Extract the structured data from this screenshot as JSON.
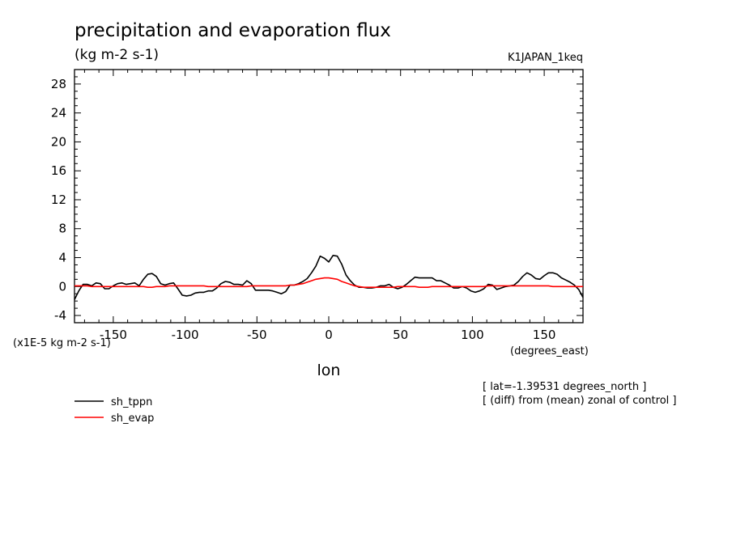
{
  "chart_data": {
    "type": "line",
    "title": "precipitation and evaporation flux",
    "units": "(kg m-2 s-1)",
    "run_label": "K1JAPAN_1keq",
    "scale_label": "(x1E-5 kg m-2 s-1)",
    "xlabel": "lon",
    "xunits": "(degrees_east)",
    "notes": [
      "[ lat=-1.39531 degrees_north ]",
      "[ (diff) from (mean) zonal of control ]"
    ],
    "xlim": [
      -177,
      177
    ],
    "ylim": [
      -5,
      30
    ],
    "xticks": [
      -150,
      -100,
      -50,
      0,
      50,
      100,
      150
    ],
    "xtick_labels": [
      "-150",
      "-100",
      "-50",
      "0",
      "50",
      "100",
      "150"
    ],
    "yticks": [
      -4,
      0,
      4,
      8,
      12,
      16,
      20,
      24,
      28
    ],
    "ytick_labels": [
      "-4",
      "0",
      "4",
      "8",
      "12",
      "16",
      "20",
      "24",
      "28"
    ],
    "x": [
      -177,
      -174,
      -171,
      -168,
      -165,
      -162,
      -159,
      -156,
      -153,
      -150,
      -147,
      -144,
      -141,
      -138,
      -135,
      -132,
      -129,
      -126,
      -123,
      -120,
      -117,
      -114,
      -111,
      -108,
      -105,
      -102,
      -99,
      -96,
      -93,
      -90,
      -87,
      -84,
      -81,
      -78,
      -75,
      -72,
      -69,
      -66,
      -63,
      -60,
      -57,
      -54,
      -51,
      -48,
      -45,
      -42,
      -39,
      -36,
      -33,
      -30,
      -27,
      -24,
      -21,
      -18,
      -15,
      -12,
      -9,
      -6,
      -3,
      0,
      3,
      6,
      9,
      12,
      15,
      18,
      21,
      24,
      27,
      30,
      33,
      36,
      39,
      42,
      45,
      48,
      51,
      54,
      57,
      60,
      63,
      66,
      69,
      72,
      75,
      78,
      81,
      84,
      87,
      90,
      93,
      96,
      99,
      102,
      105,
      108,
      111,
      114,
      117,
      120,
      123,
      126,
      129,
      132,
      135,
      138,
      141,
      144,
      147,
      150,
      153,
      156,
      159,
      162,
      165,
      168,
      171,
      174,
      177
    ],
    "series": [
      {
        "name": "sh_tppn",
        "color": "#000000",
        "values": [
          -1.8,
          -0.6,
          0.3,
          0.3,
          0.1,
          0.5,
          0.4,
          -0.3,
          -0.3,
          0.1,
          0.4,
          0.5,
          0.3,
          0.4,
          0.5,
          0.1,
          1.0,
          1.7,
          1.8,
          1.4,
          0.4,
          0.2,
          0.4,
          0.5,
          -0.3,
          -1.2,
          -1.3,
          -1.2,
          -0.9,
          -0.8,
          -0.8,
          -0.6,
          -0.6,
          -0.2,
          0.4,
          0.7,
          0.6,
          0.3,
          0.3,
          0.2,
          0.8,
          0.4,
          -0.5,
          -0.5,
          -0.5,
          -0.5,
          -0.6,
          -0.8,
          -1.0,
          -0.7,
          0.2,
          0.2,
          0.4,
          0.7,
          1.1,
          1.9,
          2.8,
          4.2,
          3.9,
          3.4,
          4.3,
          4.2,
          3.1,
          1.6,
          0.8,
          0.2,
          -0.1,
          -0.1,
          -0.2,
          -0.2,
          -0.1,
          0.1,
          0.1,
          0.3,
          -0.1,
          -0.3,
          -0.1,
          0.3,
          0.8,
          1.3,
          1.2,
          1.2,
          1.2,
          1.2,
          0.8,
          0.8,
          0.5,
          0.2,
          -0.2,
          -0.2,
          0.0,
          -0.2,
          -0.6,
          -0.8,
          -0.6,
          -0.3,
          0.3,
          0.2,
          -0.4,
          -0.2,
          0.0,
          0.1,
          0.2,
          0.7,
          1.4,
          1.9,
          1.6,
          1.1,
          1.0,
          1.5,
          1.9,
          1.9,
          1.7,
          1.2,
          0.9,
          0.6,
          0.2,
          -0.4,
          -1.5
        ]
      },
      {
        "name": "sh_evap",
        "color": "#ff0000",
        "values": [
          0.1,
          0.1,
          0.1,
          0.1,
          0.0,
          0.0,
          0.0,
          0.0,
          0.0,
          0.0,
          0.0,
          0.0,
          0.0,
          0.0,
          0.0,
          0.0,
          0.0,
          -0.1,
          -0.1,
          0.0,
          0.0,
          0.0,
          0.1,
          0.1,
          0.1,
          0.1,
          0.1,
          0.1,
          0.1,
          0.1,
          0.1,
          0.0,
          0.0,
          0.0,
          0.0,
          0.0,
          0.0,
          0.0,
          0.0,
          0.0,
          0.0,
          0.1,
          0.1,
          0.1,
          0.1,
          0.1,
          0.1,
          0.1,
          0.1,
          0.1,
          0.2,
          0.2,
          0.3,
          0.4,
          0.6,
          0.8,
          1.0,
          1.1,
          1.2,
          1.2,
          1.1,
          1.0,
          0.7,
          0.5,
          0.3,
          0.1,
          0.0,
          -0.1,
          -0.1,
          -0.1,
          -0.1,
          -0.1,
          -0.1,
          -0.1,
          -0.1,
          0.0,
          0.0,
          0.0,
          0.0,
          0.0,
          -0.1,
          -0.1,
          -0.1,
          0.0,
          0.0,
          0.0,
          0.0,
          0.0,
          0.0,
          0.0,
          0.0,
          0.0,
          0.0,
          0.0,
          0.0,
          0.0,
          0.1,
          0.1,
          0.1,
          0.1,
          0.1,
          0.1,
          0.1,
          0.1,
          0.1,
          0.1,
          0.1,
          0.1,
          0.1,
          0.1,
          0.1,
          0.0,
          0.0,
          0.0,
          0.0,
          0.0,
          0.0,
          0.0,
          0.0
        ]
      }
    ]
  }
}
